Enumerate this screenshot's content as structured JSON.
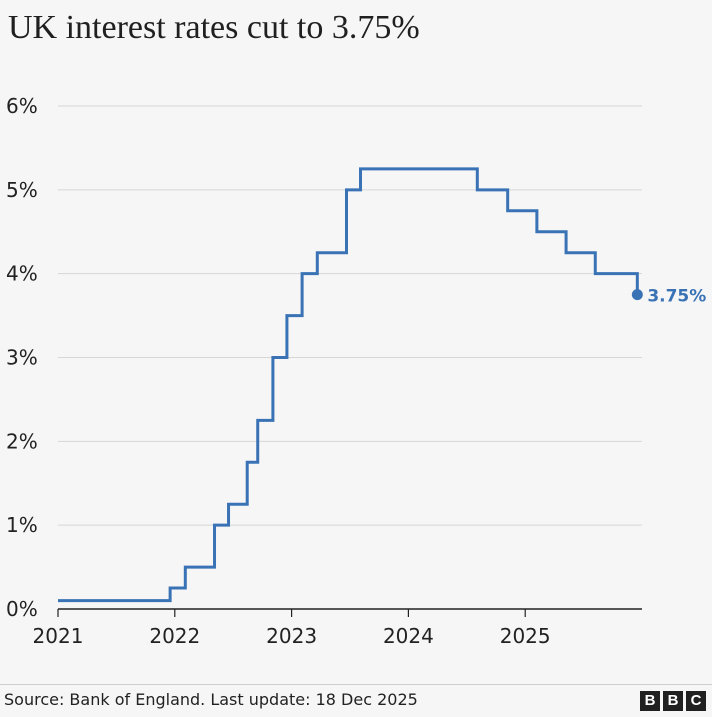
{
  "title": "UK interest rates cut to 3.75%",
  "source": "Source: Bank of England. Last update: 18 Dec 2025",
  "logo_letters": [
    "B",
    "B",
    "C"
  ],
  "colors": {
    "line": "#3a73b5",
    "grid": "#d6d6d6",
    "axis": "#222222",
    "background": "#f6f6f6"
  },
  "chart_data": {
    "type": "line",
    "step": true,
    "x_ticks": [
      2021,
      2022,
      2023,
      2024,
      2025
    ],
    "y_ticks": [
      0,
      1,
      2,
      3,
      4,
      5,
      6
    ],
    "y_tick_labels": [
      "0%",
      "1%",
      "2%",
      "3%",
      "4%",
      "5%",
      "6%"
    ],
    "xlim": [
      2021.0,
      2026.0
    ],
    "ylim": [
      0,
      6
    ],
    "grid": true,
    "end_label": "3.75%",
    "series": [
      {
        "x": [
          2021.0,
          2021.96,
          2022.09,
          2022.34,
          2022.46,
          2022.62,
          2022.71,
          2022.84,
          2022.96,
          2023.09,
          2023.22,
          2023.47,
          2023.59,
          2024.59,
          2024.85,
          2025.1,
          2025.35,
          2025.6,
          2025.96
        ],
        "y": [
          0.1,
          0.25,
          0.5,
          1.0,
          1.25,
          1.75,
          2.25,
          3.0,
          3.5,
          4.0,
          4.25,
          5.0,
          5.25,
          5.0,
          4.75,
          4.5,
          4.25,
          4.0,
          3.75
        ]
      }
    ]
  }
}
